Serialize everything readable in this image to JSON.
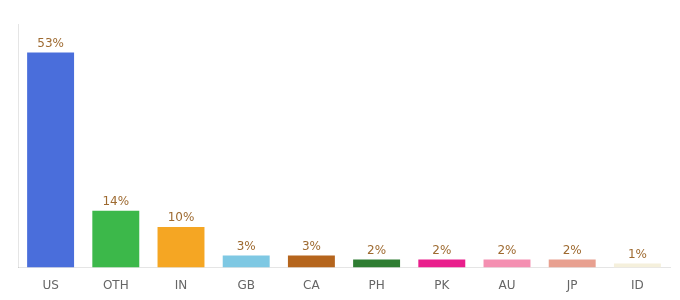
{
  "chart_data": {
    "type": "bar",
    "categories": [
      "US",
      "OTH",
      "IN",
      "GB",
      "CA",
      "PH",
      "PK",
      "AU",
      "JP",
      "ID"
    ],
    "values": [
      53,
      14,
      10,
      3,
      3,
      2,
      2,
      2,
      2,
      1
    ],
    "value_labels": [
      "53%",
      "14%",
      "10%",
      "3%",
      "3%",
      "2%",
      "2%",
      "2%",
      "2%",
      "1%"
    ],
    "colors": [
      "#4a6edb",
      "#3cb84a",
      "#f5a623",
      "#7ec8e3",
      "#b5651d",
      "#2e7d32",
      "#e91e8c",
      "#f48fb1",
      "#e8a090",
      "#f5f0dc"
    ],
    "ylim": [
      0,
      60
    ],
    "grid": false,
    "data_labels": true,
    "tick_labels": "x"
  }
}
